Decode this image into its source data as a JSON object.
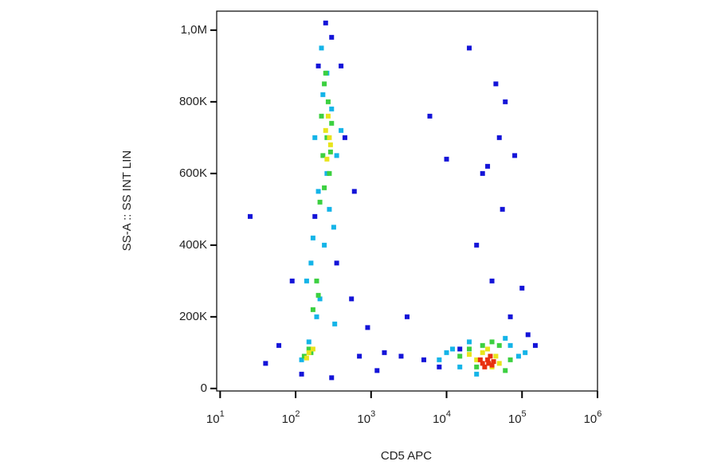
{
  "chart_data": {
    "type": "scatter",
    "x_label": "CD5 APC",
    "y_label": "SS-A :: SS INT LIN",
    "x_scale": "log",
    "xlim": [
      9,
      1000000
    ],
    "xticks": [
      {
        "value": 10,
        "label": "10",
        "exponent": "1"
      },
      {
        "value": 100,
        "label": "10",
        "exponent": "2"
      },
      {
        "value": 1000,
        "label": "10",
        "exponent": "3"
      },
      {
        "value": 10000,
        "label": "10",
        "exponent": "4"
      },
      {
        "value": 100000,
        "label": "10",
        "exponent": "5"
      },
      {
        "value": 1000000,
        "label": "10",
        "exponent": "6"
      }
    ],
    "ylim": [
      -7000,
      1053000
    ],
    "yticks": [
      0,
      {
        "value": 200000,
        "label": "200K"
      },
      {
        "value": 400000,
        "label": "400K"
      },
      {
        "value": 600000,
        "label": "600K"
      },
      {
        "value": 800000,
        "label": "800K"
      },
      {
        "value": 1000000,
        "label": "1,0M"
      }
    ],
    "series": [
      {
        "color": "#1414d8",
        "x": [
          120,
          300,
          450,
          90,
          600,
          1500,
          2500,
          5000,
          8000,
          15000,
          20000,
          60000,
          80000,
          50000,
          30000,
          100000,
          120000,
          3000,
          700,
          250,
          180,
          350,
          400,
          550,
          60,
          40,
          25,
          900,
          1200,
          25000,
          40000,
          70000,
          45000,
          55000,
          35000,
          10000,
          6000,
          150000,
          200,
          300
        ],
        "values": [
          40000,
          980000,
          700000,
          300000,
          550000,
          100000,
          90000,
          80000,
          60000,
          110000,
          950000,
          800000,
          650000,
          700000,
          600000,
          280000,
          150000,
          200000,
          90000,
          1020000,
          480000,
          350000,
          900000,
          250000,
          120000,
          70000,
          480000,
          170000,
          50000,
          400000,
          300000,
          200000,
          850000,
          500000,
          620000,
          640000,
          760000,
          120000,
          900000,
          30000
        ]
      },
      {
        "color": "#14b4e8",
        "x": [
          220,
          260,
          300,
          180,
          350,
          200,
          280,
          320,
          240,
          160,
          140,
          210,
          190,
          330,
          150,
          120,
          260,
          230,
          170,
          400,
          8000,
          12000,
          20000,
          70000,
          90000,
          15000,
          60000,
          25000,
          110000,
          10000
        ],
        "values": [
          950000,
          880000,
          780000,
          700000,
          650000,
          550000,
          500000,
          450000,
          400000,
          350000,
          300000,
          250000,
          200000,
          180000,
          130000,
          80000,
          600000,
          820000,
          420000,
          720000,
          80000,
          110000,
          130000,
          120000,
          90000,
          60000,
          140000,
          40000,
          100000,
          100000
        ]
      },
      {
        "color": "#3cd040",
        "x": [
          250,
          270,
          300,
          260,
          230,
          280,
          240,
          210,
          190,
          200,
          170,
          150,
          130,
          160,
          240,
          220,
          290,
          15000,
          20000,
          25000,
          50000,
          70000,
          40000,
          30000,
          60000
        ],
        "values": [
          880000,
          800000,
          740000,
          700000,
          650000,
          600000,
          560000,
          520000,
          300000,
          260000,
          220000,
          110000,
          90000,
          100000,
          850000,
          760000,
          660000,
          90000,
          110000,
          60000,
          120000,
          80000,
          130000,
          120000,
          50000
        ]
      },
      {
        "color": "#e8e41c",
        "x": [
          270,
          280,
          260,
          290,
          250,
          150,
          140,
          170,
          30000,
          25000,
          45000,
          50000,
          20000,
          35000,
          40000
        ],
        "values": [
          760000,
          700000,
          640000,
          680000,
          720000,
          100000,
          85000,
          110000,
          100000,
          80000,
          90000,
          70000,
          95000,
          110000,
          60000
        ]
      },
      {
        "color": "#e83010",
        "x": [
          30000,
          35000,
          40000,
          38000,
          32000,
          42000,
          28000,
          36000
        ],
        "values": [
          70000,
          80000,
          65000,
          90000,
          60000,
          75000,
          80000,
          70000
        ]
      }
    ]
  }
}
